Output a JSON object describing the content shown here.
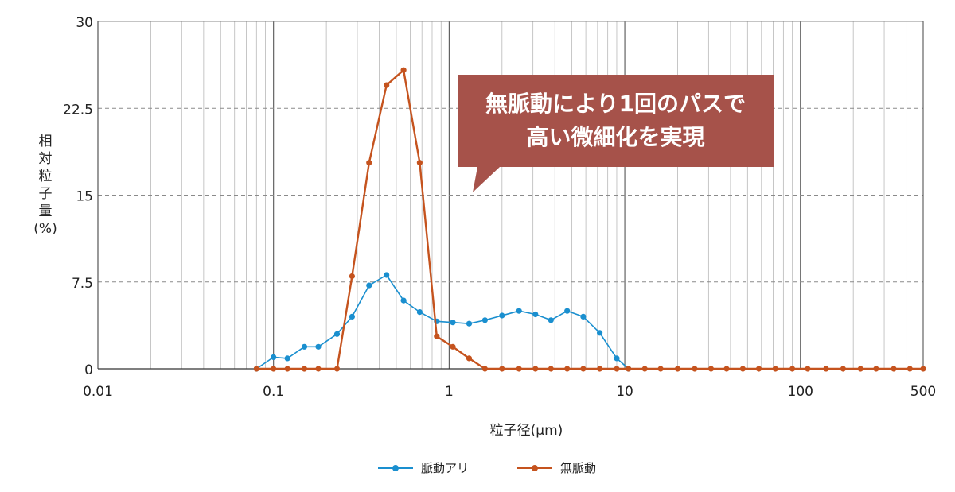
{
  "chart_data": {
    "type": "line",
    "xscale": "log",
    "xlim": [
      0.01,
      500
    ],
    "ylim": [
      0,
      30
    ],
    "xlabel": "粒子径(μm)",
    "ylabel": "相対粒子量(%)",
    "xticks": [
      "0.01",
      "0.1",
      "1",
      "10",
      "100",
      "500"
    ],
    "yticks": [
      "0",
      "7.5",
      "15",
      "22.5",
      "30"
    ],
    "grid": true,
    "legend_position": "bottom",
    "series": [
      {
        "name": "脈動アリ",
        "color": "#1a8fcf",
        "x": [
          0.08,
          0.1,
          0.12,
          0.15,
          0.18,
          0.23,
          0.28,
          0.35,
          0.44,
          0.55,
          0.68,
          0.85,
          1.05,
          1.3,
          1.6,
          2.0,
          2.5,
          3.1,
          3.8,
          4.7,
          5.8,
          7.2,
          9.0,
          10.5
        ],
        "values": [
          0,
          1.0,
          0.9,
          1.9,
          1.9,
          3.0,
          4.5,
          7.2,
          8.1,
          5.9,
          4.9,
          4.1,
          4.0,
          3.9,
          4.2,
          4.6,
          5.0,
          4.7,
          4.2,
          5.0,
          4.5,
          3.1,
          0.9,
          0
        ]
      },
      {
        "name": "無脈動",
        "color": "#c5531e",
        "x": [
          0.08,
          0.1,
          0.12,
          0.15,
          0.18,
          0.23,
          0.28,
          0.35,
          0.44,
          0.55,
          0.68,
          0.85,
          1.05,
          1.3,
          1.6,
          2.0,
          2.5,
          3.1,
          3.8,
          4.7,
          5.8,
          7.2,
          9.0,
          10.5,
          13,
          16,
          20,
          25,
          31,
          38,
          47,
          58,
          72,
          90,
          110,
          140,
          175,
          220,
          270,
          340,
          420,
          500
        ],
        "values": [
          0,
          0,
          0,
          0,
          0,
          0,
          8.0,
          17.8,
          24.5,
          25.8,
          17.8,
          2.8,
          1.9,
          0.9,
          0,
          0,
          0,
          0,
          0,
          0,
          0,
          0,
          0,
          0,
          0,
          0,
          0,
          0,
          0,
          0,
          0,
          0,
          0,
          0,
          0,
          0,
          0,
          0,
          0,
          0,
          0,
          0
        ]
      }
    ],
    "annotation": {
      "lines": [
        "無脈動により1回のパスで",
        "高い微細化を実現"
      ],
      "color": "#a6524a"
    }
  }
}
